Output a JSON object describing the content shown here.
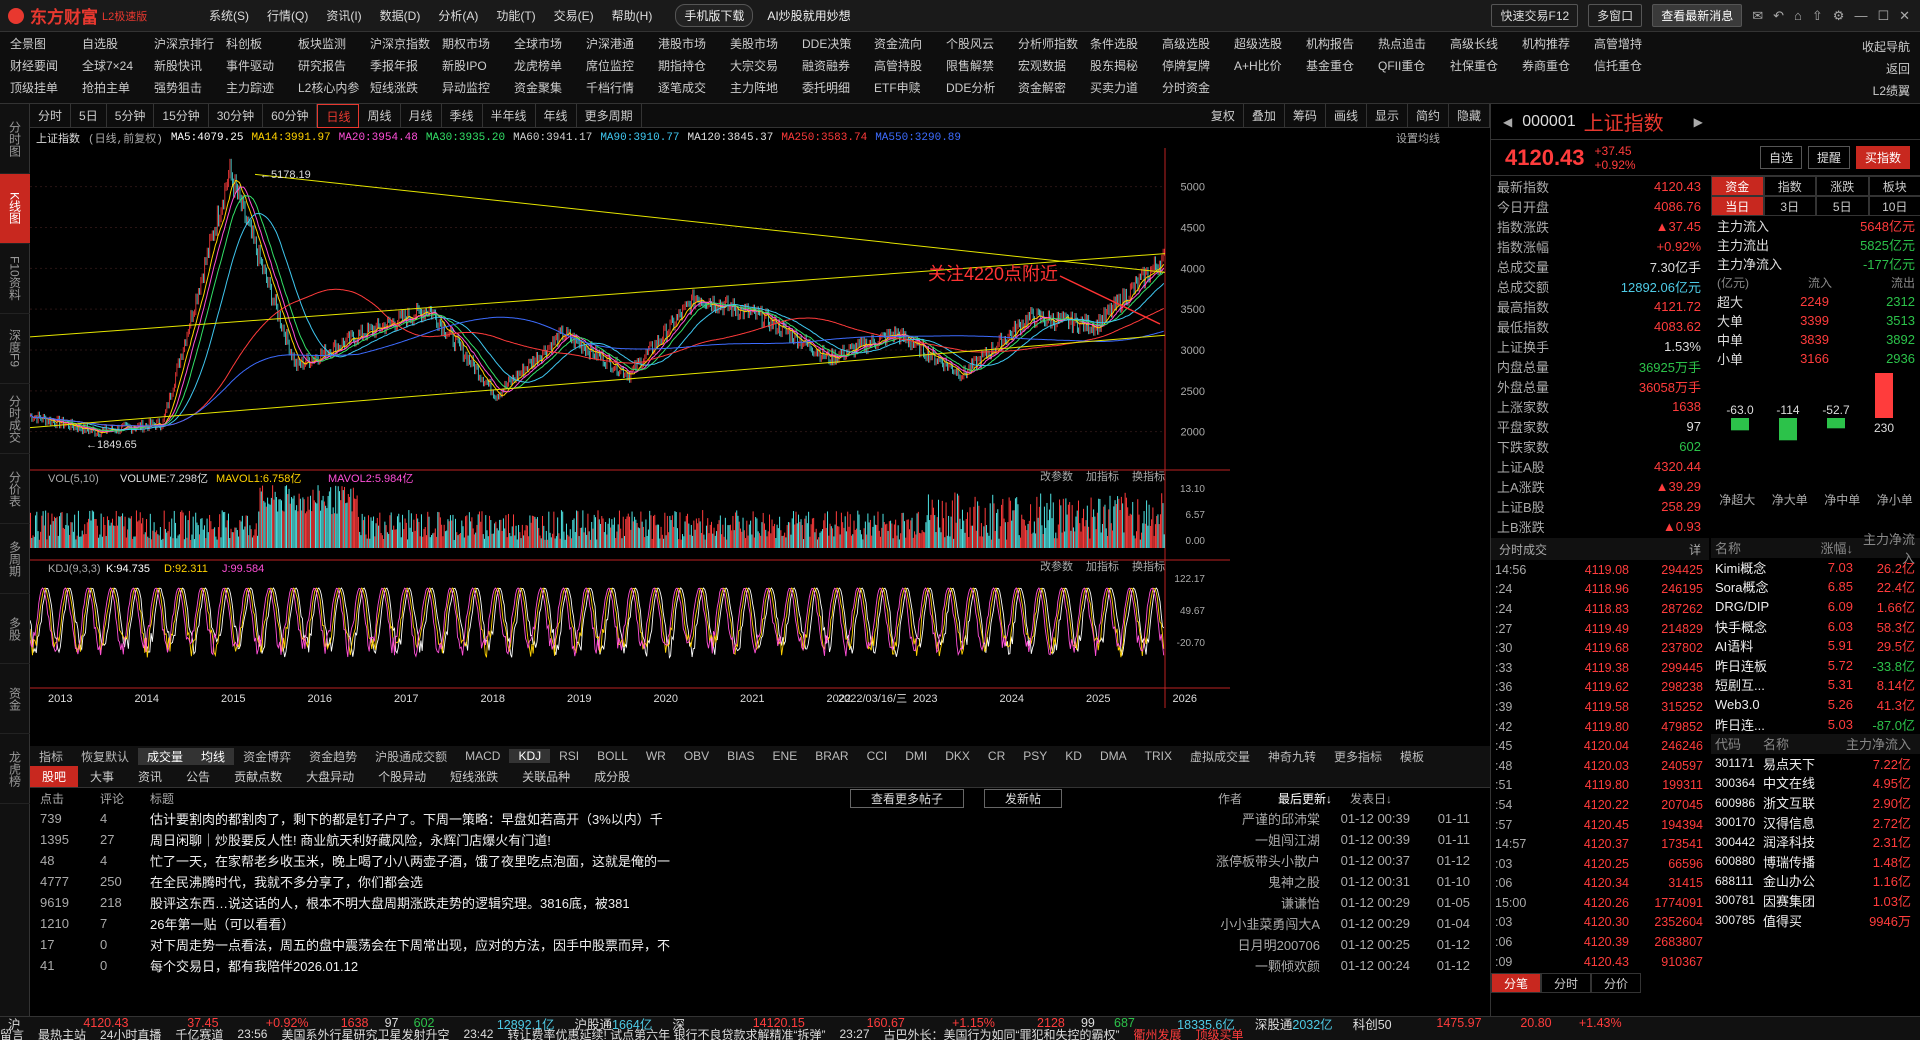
{
  "app": {
    "name": "东方财富",
    "edition": "L2极速版"
  },
  "top_menu": [
    "系统(S)",
    "行情(Q)",
    "资讯(I)",
    "数据(D)",
    "分析(A)",
    "功能(T)",
    "交易(E)",
    "帮助(H)"
  ],
  "top_buttons": {
    "mobile": "手机版下载",
    "ai": "AI炒股就用妙想",
    "quick": "快速交易F12",
    "multi": "多窗口",
    "latest": "查看最新消息"
  },
  "menu_rows": [
    [
      "全景图",
      "自选股",
      "沪深京排行",
      "科创板",
      "板块监测",
      "沪深京指数",
      "期权市场",
      "全球市场",
      "沪深港通",
      "港股市场",
      "美股市场",
      "DDE决策",
      "资金流向",
      "个股风云",
      "分析师指数",
      "条件选股",
      "高级选股",
      "超级选股",
      "机构报告",
      "热点追击",
      "高级长线",
      "机构推荐",
      "高管增持"
    ],
    [
      "财经要闻",
      "全球7×24",
      "新股快讯",
      "事件驱动",
      "研究报告",
      "季报年报",
      "新股IPO",
      "龙虎榜单",
      "席位监控",
      "期指持仓",
      "大宗交易",
      "融资融券",
      "高管持股",
      "限售解禁",
      "宏观数据",
      "股东揭秘",
      "停牌复牌",
      "A+H比价",
      "基金重仓",
      "QFII重仓",
      "社保重仓",
      "券商重仓",
      "信托重仓"
    ],
    [
      "顶级挂单",
      "抢拍主单",
      "强势狙击",
      "主力踪迹",
      "L2核心内参",
      "短线涨跌",
      "异动监控",
      "资金聚集",
      "千档行情",
      "逐笔成交",
      "主力阵地",
      "委托明细",
      "ETF申赎",
      "DDE分析",
      "资金解密",
      "买卖力道",
      "分时资金"
    ]
  ],
  "menu_right": [
    "收起导航",
    "返回",
    "L2绩翼"
  ],
  "left_tabs": [
    "分时图",
    "K线图",
    "F10资料",
    "深度F9",
    "分时成交",
    "分价表",
    "多周期",
    "多股",
    "资金",
    "龙虎榜"
  ],
  "period_bar": [
    "分时",
    "5日",
    "5分钟",
    "15分钟",
    "30分钟",
    "60分钟",
    "日线",
    "周线",
    "月线",
    "季线",
    "半年线",
    "年线",
    "更多周期"
  ],
  "period_active": "日线",
  "chart_tools": [
    "复权",
    "叠加",
    "筹码",
    "画线",
    "显示",
    "简约",
    "隐藏"
  ],
  "ma_bar": {
    "name": "上证指数",
    "mode": "(日线,前复权)",
    "ma5": "MA5:4079.25",
    "ma14": "MA14:3991.97",
    "ma20": "MA20:3954.48",
    "ma30": "MA30:3935.20",
    "ma60": "MA60:3941.17",
    "ma90": "MA90:3910.77",
    "ma120": "MA120:3845.37",
    "ma250": "MA250:3583.74",
    "ma550": "MA550:3290.89",
    "settings": "设置均线"
  },
  "annotation": "关注4220点附近",
  "chart_data": [
    {
      "type": "line",
      "title": "上证指数",
      "y_ticks": [
        5000,
        4500,
        4000,
        3500,
        3000,
        2500,
        2000
      ],
      "ylim": [
        1800,
        5400
      ],
      "x_labels": [
        "2013",
        "2014",
        "2015",
        "2016",
        "2017",
        "2018",
        "2019",
        "2020",
        "2021",
        "2022",
        "2023",
        "2024",
        "2025",
        "2026"
      ],
      "series": [
        {
          "name": "上证指数",
          "x": [
            "2013",
            "2014",
            "2015",
            "2015",
            "2016",
            "2017",
            "2018",
            "2019",
            "2019",
            "2020",
            "2021",
            "2022",
            "2022",
            "2023",
            "2024",
            "2024",
            "2025",
            "2026"
          ],
          "values": [
            2200,
            2000,
            2100,
            5178.19,
            2800,
            3200,
            3500,
            2450,
            3200,
            2700,
            3650,
            3400,
            2900,
            3200,
            2700,
            3400,
            3300,
            4120
          ]
        }
      ],
      "annotations": {
        "high": "5178.19",
        "low": "1849.65",
        "cursor_date": "2022/03/16/三"
      }
    },
    {
      "type": "bar",
      "title": "VOL(5,10)",
      "labels": {
        "volume": "VOLUME:7.298亿",
        "mavol1": "MAVOL1:6.758亿",
        "mavol2": "MAVOL2:5.984亿"
      },
      "y_ticks": [
        "13.10",
        "6.57",
        "0.00"
      ]
    },
    {
      "type": "line",
      "title": "KDJ(9,3,3)",
      "labels": {
        "k": "K:94.735",
        "d": "D:92.311",
        "j": "J:99.584"
      },
      "y_ticks": [
        "122.17",
        "49.67",
        "-20.70"
      ]
    }
  ],
  "sub_tools": [
    "改参数",
    "加指标",
    "换指标"
  ],
  "indicators": [
    "指标",
    "恢复默认",
    "成交量",
    "均线",
    "资金博弈",
    "资金趋势",
    "沪股通成交额",
    "MACD",
    "KDJ",
    "RSI",
    "BOLL",
    "WR",
    "OBV",
    "BIAS",
    "ENE",
    "BRAR",
    "CCI",
    "DMI",
    "DKX",
    "CR",
    "PSY",
    "KD",
    "DMA",
    "TRIX",
    "虚拟成交量",
    "神奇九转",
    "更多指标",
    "模板"
  ],
  "news": {
    "tabs": [
      "股吧",
      "大事",
      "资讯",
      "公告",
      "贡献点数",
      "大盘异动",
      "个股异动",
      "短线涨跌",
      "关联品种",
      "成分股"
    ],
    "buttons": {
      "more": "查看更多帖子",
      "post": "发新帖"
    },
    "head": [
      "点击",
      "评论",
      "标题",
      "作者",
      "最后更新↓",
      "发表日↓"
    ],
    "rows": [
      [
        "739",
        "4",
        "估计要割肉的都割肉了，剩下的都是钉子户了。下周一策略：早盘如若高开（3%以内）千",
        "严谨的邱沛棠",
        "01-12 00:39",
        "01-11"
      ],
      [
        "1395",
        "27",
        "周日闲聊｜炒股要反人性! 商业航天利好藏风险，永辉门店爆火有门道!",
        "一姐闯江湖",
        "01-12 00:39",
        "01-11"
      ],
      [
        "48",
        "4",
        "忙了一天，在家帮老乡收玉米，晚上喝了小八两壶子酒，饿了夜里吃点泡面，这就是俺的一",
        "涨停板带头小散户",
        "01-12 00:37",
        "01-12"
      ],
      [
        "4777",
        "250",
        "在全民沸腾时代，我就不多分享了，你们都会选",
        "鬼神之股",
        "01-12 00:31",
        "01-10"
      ],
      [
        "9619",
        "218",
        "股评这东西…说这话的人，根本不明大盘周期涨跌走势的逻辑究理。3816底，被381",
        "谦谦怡",
        "01-12 00:29",
        "01-05"
      ],
      [
        "1210",
        "7",
        "26年第一贴（可以看看）",
        "小小韭菜勇闯大A",
        "01-12 00:29",
        "01-04"
      ],
      [
        "17",
        "0",
        "对下周走势一点看法，周五的盘中震荡会在下周常出现，应对的方法，因手中股票而异，不",
        "日月明200706",
        "01-12 00:25",
        "01-12"
      ],
      [
        "41",
        "0",
        "每个交易日，都有我陪伴2026.01.12",
        "一颗倾欢颜",
        "01-12 00:24",
        "01-12"
      ]
    ]
  },
  "quote": {
    "code": "000001",
    "name": "上证指数",
    "price": "4120.43",
    "change": "+37.45",
    "pct": "+0.92%",
    "btn_watch": "自选",
    "btn_alert": "提醒",
    "btn_buy": "买指数"
  },
  "stats": [
    [
      "最新指数",
      "4120.43",
      "red"
    ],
    [
      "今日开盘",
      "4086.76",
      "red"
    ],
    [
      "指数涨跌",
      "▲37.45",
      "red"
    ],
    [
      "指数涨幅",
      "+0.92%",
      "red"
    ],
    [
      "总成交量",
      "7.30亿手",
      "white"
    ],
    [
      "总成交额",
      "12892.06亿元",
      "cyan"
    ],
    [
      "最高指数",
      "4121.72",
      "red"
    ],
    [
      "最低指数",
      "4083.62",
      "red"
    ],
    [
      "上证换手",
      "1.53%",
      "white"
    ],
    [
      "内盘总量",
      "36925万手",
      "green"
    ],
    [
      "外盘总量",
      "36058万手",
      "red"
    ],
    [
      "上涨家数",
      "1638",
      "red"
    ],
    [
      "平盘家数",
      "97",
      "white"
    ],
    [
      "下跌家数",
      "602",
      "green"
    ],
    [
      "上证A股",
      "4320.44",
      "red"
    ],
    [
      "上A涨跌",
      "▲39.29",
      "red"
    ],
    [
      "上证B股",
      "258.29",
      "red"
    ],
    [
      "上B涨跌",
      "▲0.93",
      "red"
    ]
  ],
  "flow": {
    "tabs": [
      "资金",
      "指数",
      "涨跌",
      "板块"
    ],
    "subtabs": [
      "当日",
      "3日",
      "5日",
      "10日"
    ],
    "rows": [
      [
        "主力流入",
        "5648亿元",
        "red"
      ],
      [
        "主力流出",
        "5825亿元",
        "green"
      ],
      [
        "主力净流入",
        "-177亿元",
        "green"
      ]
    ],
    "unit": "(亿元)",
    "cols": [
      "流入",
      "流出"
    ],
    "table": [
      [
        "超大",
        "2249",
        "2312"
      ],
      [
        "大单",
        "3399",
        "3513"
      ],
      [
        "中单",
        "3839",
        "3892"
      ],
      [
        "小单",
        "3166",
        "2936"
      ]
    ],
    "net_labels": [
      "-63.0",
      "-114",
      "-52.7",
      "230"
    ],
    "net_values": [
      -63.0,
      -114,
      -52.7,
      230
    ],
    "net_names": [
      "净超大",
      "净大单",
      "净中单",
      "净小单"
    ]
  },
  "ticks": {
    "title": "分时成交",
    "detail": "详",
    "rows": [
      [
        "14:56",
        "4119.08",
        "294425"
      ],
      [
        ":24",
        "4118.96",
        "246195"
      ],
      [
        ":24",
        "4118.83",
        "287262"
      ],
      [
        ":27",
        "4119.49",
        "214829"
      ],
      [
        ":30",
        "4119.68",
        "237802"
      ],
      [
        ":33",
        "4119.38",
        "299445"
      ],
      [
        ":36",
        "4119.62",
        "298238"
      ],
      [
        ":39",
        "4119.58",
        "315252"
      ],
      [
        ":42",
        "4119.80",
        "479852"
      ],
      [
        ":45",
        "4120.04",
        "246246"
      ],
      [
        ":48",
        "4120.03",
        "240597"
      ],
      [
        ":51",
        "4119.80",
        "199311"
      ],
      [
        ":54",
        "4120.22",
        "207045"
      ],
      [
        ":57",
        "4120.45",
        "194394"
      ],
      [
        "14:57",
        "4120.37",
        "173541"
      ],
      [
        ":03",
        "4120.25",
        "66596"
      ],
      [
        ":06",
        "4120.34",
        "31415"
      ],
      [
        "15:00",
        "4120.26",
        "1774091"
      ],
      [
        ":03",
        "4120.30",
        "2352604"
      ],
      [
        ":06",
        "4120.39",
        "2683807"
      ],
      [
        ":09",
        "4120.43",
        "910367"
      ]
    ],
    "tabs": [
      "分笔",
      "分时",
      "分价"
    ]
  },
  "boards": {
    "head": [
      "名称",
      "涨幅↓",
      "主力净流入"
    ],
    "rows": [
      [
        "Kimi概念",
        "7.03",
        "26.2亿"
      ],
      [
        "Sora概念",
        "6.85",
        "22.4亿"
      ],
      [
        "DRG/DIP",
        "6.09",
        "1.66亿"
      ],
      [
        "快手概念",
        "6.03",
        "58.3亿"
      ],
      [
        "AI语料",
        "5.91",
        "29.5亿"
      ],
      [
        "昨日连板",
        "5.72",
        "-33.8亿"
      ],
      [
        "短剧互...",
        "5.31",
        "8.14亿"
      ],
      [
        "Web3.0",
        "5.26",
        "41.3亿"
      ],
      [
        "昨日连...",
        "5.03",
        "-87.0亿"
      ]
    ],
    "head2": [
      "代码",
      "名称",
      "主力净流入"
    ],
    "stocks": [
      [
        "301171",
        "易点天下",
        "7.22亿"
      ],
      [
        "300364",
        "中文在线",
        "4.95亿"
      ],
      [
        "600986",
        "浙文互联",
        "2.90亿"
      ],
      [
        "300170",
        "汉得信息",
        "2.72亿"
      ],
      [
        "300442",
        "润泽科技",
        "2.31亿"
      ],
      [
        "600880",
        "博瑞传播",
        "1.48亿"
      ],
      [
        "688111",
        "金山办公",
        "1.16亿"
      ],
      [
        "300781",
        "因赛集团",
        "1.03亿"
      ],
      [
        "300785",
        "值得买",
        "9946万"
      ]
    ]
  },
  "status": {
    "sh": "沪",
    "sh_price": "4120.43",
    "sh_chg": "37.45",
    "sh_pct": "+0.92%",
    "sh_ud": "1638",
    "sh_flat": "97",
    "sh_down": "602",
    "sh_amt": "12892.1亿",
    "hgt": "沪股通",
    "hgt_val": "1664亿",
    "sz": "深",
    "sz_price": "14120.15",
    "sz_chg": "160.67",
    "sz_pct": "+1.15%",
    "sz_ud": "2128",
    "sz_flat": "99",
    "sz_down": "687",
    "sz_amt": "18335.6亿",
    "sgt": "深股通",
    "sgt_val": "2032亿",
    "kc": "科创50",
    "kc_price": "1475.97",
    "ext_price": "20.80",
    "ext_pct": "+1.43%"
  },
  "ticker": [
    "留言",
    "最热主站",
    "24小时直播",
    "千亿赛道",
    "23:56",
    "美国系外行星研究卫星发射升空",
    "23:42",
    "转让费率优惠延续! 试点第六年 银行不良贷款求解精准“拆弹”",
    "23:27",
    "古巴外长：美国行为如同“罪犯和失控的霸权”",
    "衢州发展",
    "顶级买单"
  ]
}
